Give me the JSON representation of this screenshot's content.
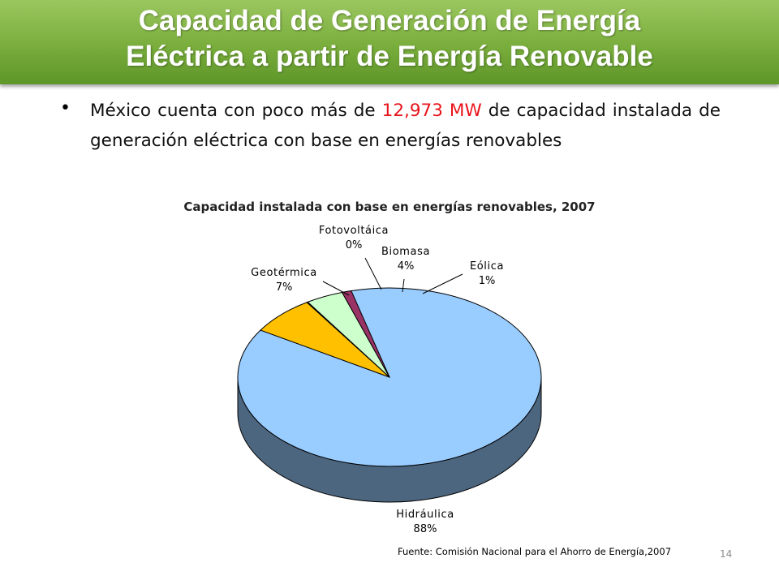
{
  "slide": {
    "title_line1": "Capacidad de Generación de Energía",
    "title_line2": "Eléctrica a partir de Energía Renovable",
    "bullet_before": "México cuenta con poco más de ",
    "bullet_highlight": "12,973 MW",
    "bullet_after": " de capacidad instalada de generación eléctrica con base en energías renovables",
    "source": "Fuente: Comisión Nacional para el Ahorro de Energía,2007",
    "page_number": "14",
    "colors": {
      "banner": "#79ad3c",
      "highlight": "#e8141b"
    }
  },
  "chart_data": {
    "type": "pie",
    "title": "Capacidad instalada con base en energías renovables, 2007",
    "slices": [
      {
        "label": "Hidráulica",
        "value": 88,
        "value_label": "88%",
        "color": "#99ccff"
      },
      {
        "label": "Geotérmica",
        "value": 7,
        "value_label": "7%",
        "color": "#ffc000"
      },
      {
        "label": "Fotovoltáica",
        "value": 0,
        "value_label": "0%",
        "color": "#ffffcc"
      },
      {
        "label": "Biomasa",
        "value": 4,
        "value_label": "4%",
        "color": "#ccffcc"
      },
      {
        "label": "Eólica",
        "value": 1,
        "value_label": "1%",
        "color": "#993366"
      }
    ],
    "legend": "none",
    "style": "3d"
  }
}
